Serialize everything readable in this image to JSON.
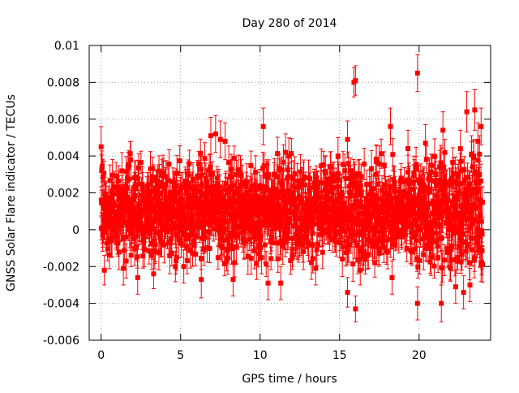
{
  "chart_data": {
    "type": "scatter",
    "title": "Day 280 of 2014",
    "xlabel": "GPS time / hours",
    "ylabel": "GNSS Solar Flare indicator / TECUs",
    "xlim": [
      -0.75,
      24.5
    ],
    "ylim": [
      -0.006,
      0.01
    ],
    "xticks": [
      0,
      5,
      10,
      15,
      20
    ],
    "xtick_labels": [
      "0",
      "5",
      "10",
      "15",
      "20"
    ],
    "yticks": [
      -0.006,
      -0.004,
      -0.002,
      0,
      0.002,
      0.004,
      0.006,
      0.008,
      0.01
    ],
    "ytick_labels": [
      "-0.006",
      "-0.004",
      "-0.002",
      "0",
      "0.002",
      "0.004",
      "0.006",
      "0.008",
      "0.01"
    ],
    "grid": true,
    "legend": "none",
    "marker": "square",
    "error_bars": true,
    "color": "#ff0000",
    "series": [
      {
        "note_x_range": [
          0,
          24
        ],
        "baseline": 0.001,
        "typical_spread": 0.0012,
        "typical_error": 0.0008,
        "sample_points": [
          {
            "x": 0.0,
            "y": 0.0045,
            "err": 0.0011
          },
          {
            "x": 0.2,
            "y": -0.0022,
            "err": 0.0008
          },
          {
            "x": 1.4,
            "y": -0.0021,
            "err": 0.0009
          },
          {
            "x": 2.3,
            "y": -0.0026,
            "err": 0.0009
          },
          {
            "x": 3.3,
            "y": -0.0024,
            "err": 0.0008
          },
          {
            "x": 5.2,
            "y": -0.002,
            "err": 0.0009
          },
          {
            "x": 6.3,
            "y": -0.0027,
            "err": 0.001
          },
          {
            "x": 6.9,
            "y": 0.0051,
            "err": 0.001
          },
          {
            "x": 7.2,
            "y": 0.0052,
            "err": 0.001
          },
          {
            "x": 7.5,
            "y": 0.0049,
            "err": 0.001
          },
          {
            "x": 7.8,
            "y": 0.0048,
            "err": 0.001
          },
          {
            "x": 8.3,
            "y": -0.0027,
            "err": 0.0009
          },
          {
            "x": 10.2,
            "y": 0.0056,
            "err": 0.001
          },
          {
            "x": 10.5,
            "y": -0.0029,
            "err": 0.0009
          },
          {
            "x": 11.3,
            "y": -0.0029,
            "err": 0.0009
          },
          {
            "x": 11.6,
            "y": 0.0042,
            "err": 0.001
          },
          {
            "x": 13.5,
            "y": -0.0021,
            "err": 0.0009
          },
          {
            "x": 14.9,
            "y": 0.004,
            "err": 0.001
          },
          {
            "x": 15.5,
            "y": 0.0049,
            "err": 0.001
          },
          {
            "x": 15.5,
            "y": -0.0034,
            "err": 0.0008
          },
          {
            "x": 15.9,
            "y": 0.008,
            "err": 0.0008
          },
          {
            "x": 16.0,
            "y": 0.0081,
            "err": 0.0008
          },
          {
            "x": 16.0,
            "y": -0.0043,
            "err": 0.0007
          },
          {
            "x": 16.3,
            "y": -0.0022,
            "err": 0.0008
          },
          {
            "x": 17.3,
            "y": 0.0037,
            "err": 0.0009
          },
          {
            "x": 18.2,
            "y": 0.0056,
            "err": 0.001
          },
          {
            "x": 18.3,
            "y": -0.0026,
            "err": 0.0009
          },
          {
            "x": 19.3,
            "y": 0.0044,
            "err": 0.001
          },
          {
            "x": 19.9,
            "y": 0.0085,
            "err": 0.001
          },
          {
            "x": 19.9,
            "y": -0.004,
            "err": 0.0009
          },
          {
            "x": 20.4,
            "y": 0.0047,
            "err": 0.001
          },
          {
            "x": 21.5,
            "y": 0.0054,
            "err": 0.001
          },
          {
            "x": 21.4,
            "y": -0.004,
            "err": 0.001
          },
          {
            "x": 22.3,
            "y": -0.0031,
            "err": 0.0009
          },
          {
            "x": 22.6,
            "y": 0.0044,
            "err": 0.001
          },
          {
            "x": 22.8,
            "y": -0.0034,
            "err": 0.0009
          },
          {
            "x": 23.0,
            "y": 0.0064,
            "err": 0.0011
          },
          {
            "x": 23.2,
            "y": -0.003,
            "err": 0.0009
          },
          {
            "x": 23.3,
            "y": 0.0041,
            "err": 0.001
          },
          {
            "x": 23.5,
            "y": 0.0065,
            "err": 0.0011
          },
          {
            "x": 23.7,
            "y": 0.0048,
            "err": 0.001
          },
          {
            "x": 23.8,
            "y": 0.0041,
            "err": 0.001
          },
          {
            "x": 23.9,
            "y": 0.0056,
            "err": 0.001
          },
          {
            "x": 23.9,
            "y": -0.0019,
            "err": 0.0009
          }
        ]
      }
    ]
  }
}
